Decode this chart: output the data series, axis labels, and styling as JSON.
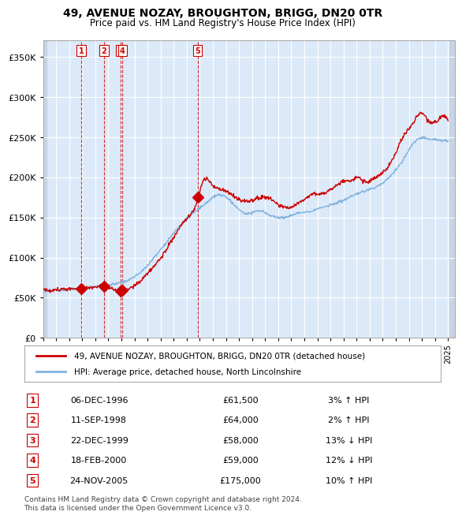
{
  "title": "49, AVENUE NOZAY, BROUGHTON, BRIGG, DN20 0TR",
  "subtitle": "Price paid vs. HM Land Registry's House Price Index (HPI)",
  "red_label": "49, AVENUE NOZAY, BROUGHTON, BRIGG, DN20 0TR (detached house)",
  "blue_label": "HPI: Average price, detached house, North Lincolnshire",
  "footer": "Contains HM Land Registry data © Crown copyright and database right 2024.\nThis data is licensed under the Open Government Licence v3.0.",
  "transactions": [
    {
      "num": 1,
      "date": "1996-12-06",
      "price": 61500,
      "pct": "3%",
      "dir": "↑"
    },
    {
      "num": 2,
      "date": "1998-09-11",
      "price": 64000,
      "pct": "2%",
      "dir": "↑"
    },
    {
      "num": 3,
      "date": "1999-12-22",
      "price": 58000,
      "pct": "13%",
      "dir": "↓"
    },
    {
      "num": 4,
      "date": "2000-02-18",
      "price": 59000,
      "pct": "12%",
      "dir": "↓"
    },
    {
      "num": 5,
      "date": "2005-11-24",
      "price": 175000,
      "pct": "10%",
      "dir": "↑"
    }
  ],
  "ylim": [
    0,
    370000
  ],
  "yticks": [
    0,
    50000,
    100000,
    150000,
    200000,
    250000,
    300000,
    350000
  ],
  "background_color": "#dce9f8",
  "hatch_color": "#c0cfe0",
  "red_color": "#cc0000",
  "blue_color": "#7fb2e0",
  "grid_color": "#ffffff",
  "transaction_box_color": "#cc0000"
}
